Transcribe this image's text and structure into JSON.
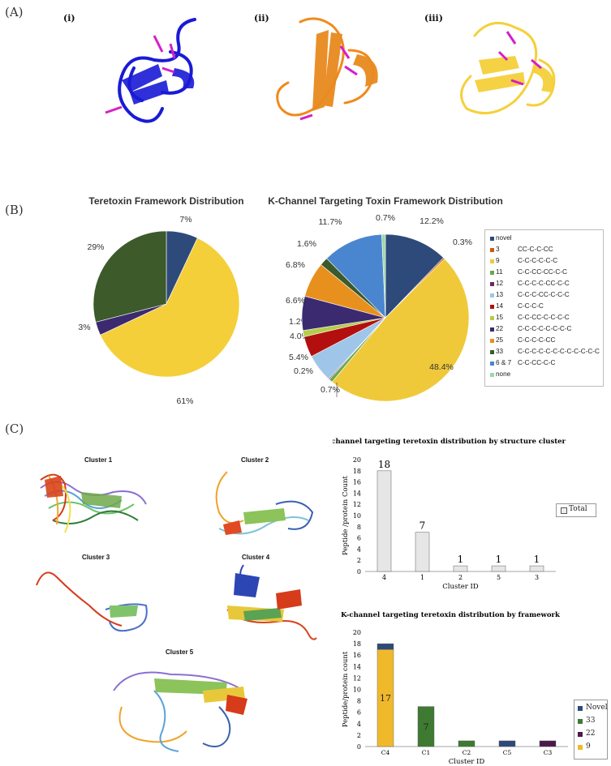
{
  "panels": {
    "a": "(A)",
    "b": "(B)",
    "c": "(C)",
    "a_subs": [
      "(i)",
      "(ii)",
      "(iii)"
    ],
    "structure_colors": [
      "#1a1ad6",
      "#f08a1c",
      "#f5d03a"
    ],
    "disulfide_color": "#d61fc6"
  },
  "clusters": [
    "Cluster 1",
    "Cluster 2",
    "Cluster 3",
    "Cluster 4",
    "Cluster 5"
  ],
  "legend_c1": {
    "label": "Total"
  },
  "legend_c2": [
    "Novel",
    "33",
    "22",
    "9"
  ],
  "legend_b": [
    {
      "fw": "novel",
      "pat": "",
      "color": "#2e4a7a"
    },
    {
      "fw": "3",
      "pat": "CC-C-C-CC",
      "color": "#c75b1a"
    },
    {
      "fw": "9",
      "pat": "C-C-C-C-C-C",
      "color": "#f0c93a"
    },
    {
      "fw": "11",
      "pat": "C-C-CC-CC-C-C",
      "color": "#6aa84f"
    },
    {
      "fw": "12",
      "pat": "C-C-C-C-CC-C-C",
      "color": "#6b2a5e"
    },
    {
      "fw": "13",
      "pat": "C-C-C-CC-C-C-C",
      "color": "#9fc5e8"
    },
    {
      "fw": "14",
      "pat": "C-C-C-C",
      "color": "#b40f0f"
    },
    {
      "fw": "15",
      "pat": "C-C-CC-C-C-C-C",
      "color": "#b5cc4a"
    },
    {
      "fw": "22",
      "pat": "C-C-C-C-C-C-C-C",
      "color": "#3b2a70"
    },
    {
      "fw": "25",
      "pat": "C-C-C-C-CC",
      "color": "#e8901e"
    },
    {
      "fw": "33",
      "pat": "C-C-C-C-C-C-C-C-C-C-C-C",
      "color": "#3d5a2a"
    },
    {
      "fw": "6 & 7",
      "pat": "C-C-CC-C-C",
      "color": "#4a86d0"
    },
    {
      "fw": "none",
      "pat": "",
      "color": "#9ed9a4"
    }
  ],
  "chart_data": [
    {
      "type": "pie",
      "title": "Teretoxin Framework Distribution",
      "slices": [
        {
          "label": "7%",
          "value": 7,
          "color": "#2e4a7a"
        },
        {
          "label": "61%",
          "value": 61,
          "color": "#f5cf3a"
        },
        {
          "label": "3%",
          "value": 3,
          "color": "#3b2a70"
        },
        {
          "label": "29%",
          "value": 29,
          "color": "#3d5a2a"
        }
      ]
    },
    {
      "type": "pie",
      "title": "K-Channel Targeting Toxin Framework Distribution",
      "slices": [
        {
          "label": "12.2%",
          "value": 12.2,
          "color": "#2e4a7a"
        },
        {
          "label": "0.3%",
          "value": 0.3,
          "color": "#c75b1a"
        },
        {
          "label": "48.4%",
          "value": 48.4,
          "color": "#f0c93a"
        },
        {
          "label": "0.7%",
          "value": 0.7,
          "color": "#6aa84f"
        },
        {
          "label": "0.2%",
          "value": 0.2,
          "color": "#6b2a5e"
        },
        {
          "label": "5.4%",
          "value": 5.4,
          "color": "#9fc5e8"
        },
        {
          "label": "4.0%",
          "value": 4.0,
          "color": "#b40f0f"
        },
        {
          "label": "1.2%",
          "value": 1.2,
          "color": "#b5cc4a"
        },
        {
          "label": "6.6%",
          "value": 6.6,
          "color": "#3b2a70"
        },
        {
          "label": "6.8%",
          "value": 6.8,
          "color": "#e8901e"
        },
        {
          "label": "1.6%",
          "value": 1.6,
          "color": "#3d5a2a"
        },
        {
          "label": "11.7%",
          "value": 11.7,
          "color": "#4a86d0"
        },
        {
          "label": "0.7%",
          "value": 0.7,
          "color": "#9ed9a4"
        }
      ]
    },
    {
      "type": "bar",
      "title": "K-channel targeting teretoxin distribution by structure cluster",
      "xlabel": "Cluster ID",
      "ylabel": "Peptide /protein Count",
      "categories": [
        "4",
        "1",
        "2",
        "5",
        "3"
      ],
      "series": [
        {
          "name": "Total",
          "values": [
            18,
            7,
            1,
            1,
            1
          ]
        }
      ],
      "ylim": [
        0,
        20
      ],
      "yticks": [
        0,
        2,
        4,
        6,
        8,
        10,
        12,
        14,
        16,
        18,
        20
      ]
    },
    {
      "type": "bar",
      "stacked": true,
      "title": "K-channel targeting teretoxin distribution by framework",
      "xlabel": "Cluster ID",
      "ylabel": "Peptide/protein count",
      "categories": [
        "C4",
        "C1",
        "C2",
        "C5",
        "C3"
      ],
      "series": [
        {
          "name": "9",
          "values": [
            17,
            0,
            0,
            0,
            0
          ],
          "color": "#f0b92c"
        },
        {
          "name": "33",
          "values": [
            0,
            7,
            1,
            0,
            0
          ],
          "color": "#3f7a33"
        },
        {
          "name": "22",
          "values": [
            0,
            0,
            0,
            0,
            1
          ],
          "color": "#4a1a4a"
        },
        {
          "name": "Novel",
          "values": [
            1,
            0,
            0,
            1,
            0
          ],
          "color": "#2e4a7a"
        }
      ],
      "data_labels": [
        {
          "category": "C4",
          "text": "17"
        },
        {
          "category": "C1",
          "text": "7"
        }
      ],
      "ylim": [
        0,
        20
      ],
      "yticks": [
        0,
        2,
        4,
        6,
        8,
        10,
        12,
        14,
        16,
        18,
        20
      ]
    }
  ]
}
